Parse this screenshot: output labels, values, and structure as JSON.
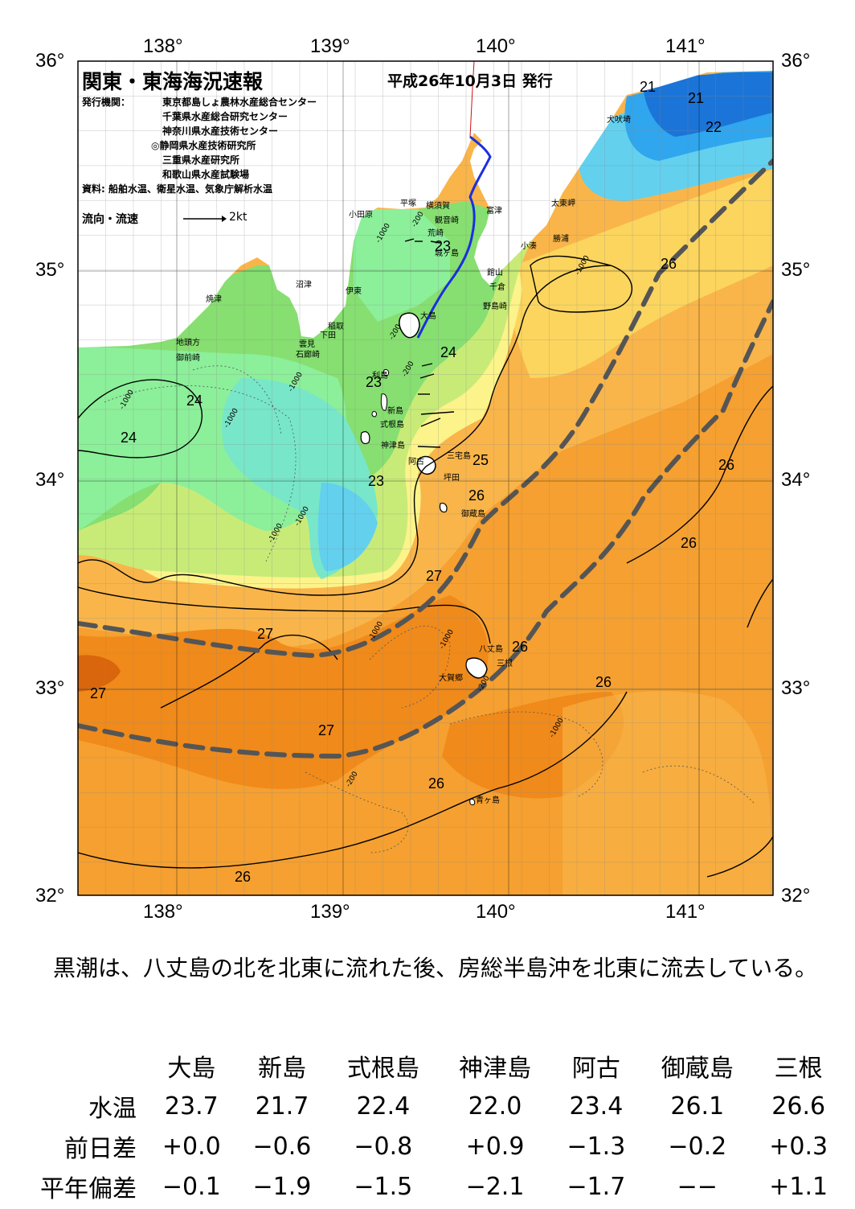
{
  "header": {
    "title": "関東・東海海況速報",
    "date": "平成26年10月3日 発行",
    "issuer_label": "発行機関：",
    "issuers": [
      "東京都島しょ農林水産総合センター",
      "千葉県水産総合研究センター",
      "神奈川県水産技術センター",
      "◎静岡県水産技術研究所",
      "三重県水産研究所",
      "和歌山県水産試験場"
    ],
    "source": "資料: 船舶水温、衛星水温、気象庁解析水温",
    "legend_label": "流向・流速",
    "legend_scale": "2kt"
  },
  "axes": {
    "lon_labels": [
      "138°",
      "139°",
      "140°",
      "141°"
    ],
    "lat_labels": [
      "36°",
      "35°",
      "34°",
      "33°",
      "32°"
    ]
  },
  "places": [
    {
      "id": "inubosaki",
      "text": "犬吠埼"
    },
    {
      "id": "taitomisaki",
      "text": "太東岬"
    },
    {
      "id": "katsuura",
      "text": "勝浦"
    },
    {
      "id": "kominato",
      "text": "小湊"
    },
    {
      "id": "futtsu",
      "text": "富津"
    },
    {
      "id": "tateyama",
      "text": "館山"
    },
    {
      "id": "chikura",
      "text": "千倉"
    },
    {
      "id": "nojimazaki",
      "text": "野島崎"
    },
    {
      "id": "yokosuka",
      "text": "横須賀"
    },
    {
      "id": "kannonzaki",
      "text": "観音崎"
    },
    {
      "id": "arasaki",
      "text": "荒崎"
    },
    {
      "id": "jogasaki",
      "text": "城ヶ島"
    },
    {
      "id": "hiratsuka",
      "text": "平塚"
    },
    {
      "id": "odawara",
      "text": "小田原"
    },
    {
      "id": "numazu",
      "text": "沼津"
    },
    {
      "id": "yaizu",
      "text": "焼津"
    },
    {
      "id": "ito",
      "text": "伊東"
    },
    {
      "id": "inatori",
      "text": "稲取"
    },
    {
      "id": "shimoda",
      "text": "下田"
    },
    {
      "id": "kumomi",
      "text": "雲見"
    },
    {
      "id": "irozaki",
      "text": "石廊崎"
    },
    {
      "id": "jitogata",
      "text": "地頭方"
    },
    {
      "id": "omaezaki",
      "text": "御前崎"
    },
    {
      "id": "oshima",
      "text": "大島"
    },
    {
      "id": "toshima",
      "text": "利島"
    },
    {
      "id": "niijima",
      "text": "新島"
    },
    {
      "id": "shikinejima",
      "text": "式根島"
    },
    {
      "id": "kozushima",
      "text": "神津島"
    },
    {
      "id": "ako",
      "text": "阿古"
    },
    {
      "id": "miyakejima",
      "text": "三宅島"
    },
    {
      "id": "tsubota",
      "text": "坪田"
    },
    {
      "id": "mikurajima",
      "text": "御蔵島"
    },
    {
      "id": "hachijojima",
      "text": "八丈島"
    },
    {
      "id": "mine",
      "text": "三根"
    },
    {
      "id": "okago",
      "text": "大賀郷"
    },
    {
      "id": "aogashima",
      "text": "青ヶ島"
    }
  ],
  "isotherms": [
    {
      "id": "t21a",
      "text": "21"
    },
    {
      "id": "t21b",
      "text": "21"
    },
    {
      "id": "t22",
      "text": "22"
    },
    {
      "id": "t23a",
      "text": "23"
    },
    {
      "id": "t24a",
      "text": "24"
    },
    {
      "id": "t23b",
      "text": "23"
    },
    {
      "id": "t24b",
      "text": "24"
    },
    {
      "id": "t24c",
      "text": "24"
    },
    {
      "id": "t25",
      "text": "25"
    },
    {
      "id": "t23c",
      "text": "23"
    },
    {
      "id": "t26a",
      "text": "26"
    },
    {
      "id": "t26b",
      "text": "26"
    },
    {
      "id": "t26c",
      "text": "26"
    },
    {
      "id": "t26d",
      "text": "26"
    },
    {
      "id": "t27a",
      "text": "27"
    },
    {
      "id": "t27b",
      "text": "27"
    },
    {
      "id": "t26e",
      "text": "26"
    },
    {
      "id": "t27c",
      "text": "27"
    },
    {
      "id": "t26f",
      "text": "26"
    },
    {
      "id": "t27d",
      "text": "27"
    },
    {
      "id": "t26g",
      "text": "26"
    },
    {
      "id": "t26h",
      "text": "26"
    }
  ],
  "depths": [
    {
      "id": "d1",
      "text": "-200"
    },
    {
      "id": "d2",
      "text": "-1000"
    },
    {
      "id": "d3",
      "text": "-1000"
    },
    {
      "id": "d4",
      "text": "-200"
    },
    {
      "id": "d5",
      "text": "-1000"
    },
    {
      "id": "d6",
      "text": "-1000"
    },
    {
      "id": "d7",
      "text": "-1000"
    },
    {
      "id": "d8",
      "text": "-200"
    },
    {
      "id": "d9",
      "text": "-1000"
    },
    {
      "id": "d10",
      "text": "-1000"
    },
    {
      "id": "d11",
      "text": "-200"
    },
    {
      "id": "d12",
      "text": "-1000"
    },
    {
      "id": "d13",
      "text": "-1000"
    },
    {
      "id": "d14",
      "text": "-1000"
    },
    {
      "id": "d15",
      "text": "-200"
    }
  ],
  "colors": {
    "temp_21": "#1b74d8",
    "temp_22": "#2fa6ee",
    "temp_22_5": "#63d0ee",
    "temp_23": "#78e6c8",
    "temp_23_5": "#8cef9a",
    "temp_24": "#86df70",
    "temp_24_5": "#c8eb78",
    "temp_25": "#fcf38a",
    "temp_25_5": "#fbd55e",
    "temp_26": "#f9b54a",
    "temp_26_5": "#f5a030",
    "temp_27": "#f08a1a",
    "temp_27_5": "#d9650c",
    "land": "#ffffff",
    "kuroshio_axis": "#555555",
    "ferry_track": "#1c2ee0"
  },
  "summary": "黒潮は、八丈島の北を北東に流れた後、房総半島沖を北東に流去している。",
  "table": {
    "columns": [
      "大島",
      "新島",
      "式根島",
      "神津島",
      "阿古",
      "御蔵島",
      "三根"
    ],
    "rows": [
      {
        "label": "水温",
        "values": [
          "23.7",
          "21.7",
          "22.4",
          "22.0",
          "23.4",
          "26.1",
          "26.6"
        ]
      },
      {
        "label": "前日差",
        "values": [
          "+0.0",
          "−0.6",
          "−0.8",
          "+0.9",
          "−1.3",
          "−0.2",
          "+0.3"
        ]
      },
      {
        "label": "平年偏差",
        "values": [
          "−0.1",
          "−1.9",
          "−1.5",
          "−2.1",
          "−1.7",
          "−−",
          "+1.1"
        ]
      }
    ]
  }
}
